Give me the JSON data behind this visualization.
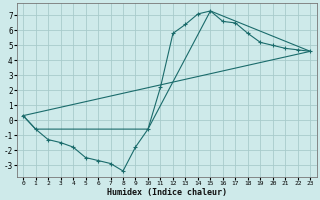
{
  "xlabel": "Humidex (Indice chaleur)",
  "bg_color": "#ceeaea",
  "grid_color": "#a8cccc",
  "line_color": "#1a6b6b",
  "series1_x": [
    0,
    1,
    2,
    3,
    4,
    5,
    6,
    7,
    8,
    9,
    10,
    11,
    12,
    13,
    14,
    15,
    16,
    17,
    18,
    19,
    20,
    21,
    22,
    23
  ],
  "series1_y": [
    0.3,
    -0.6,
    -1.3,
    -1.5,
    -1.8,
    -2.5,
    -2.7,
    -2.9,
    -3.4,
    -1.8,
    -0.6,
    2.2,
    5.8,
    6.4,
    7.1,
    7.3,
    6.6,
    6.5,
    5.8,
    5.2,
    5.0,
    4.8,
    4.7,
    4.6
  ],
  "series2_x": [
    0,
    1,
    10,
    15,
    23
  ],
  "series2_y": [
    0.3,
    -0.6,
    -0.6,
    7.3,
    4.6
  ],
  "series3_x": [
    0,
    23
  ],
  "series3_y": [
    0.3,
    4.6
  ],
  "xlim": [
    -0.5,
    23.5
  ],
  "ylim": [
    -3.8,
    7.8
  ],
  "xticks": [
    0,
    1,
    2,
    3,
    4,
    5,
    6,
    7,
    8,
    9,
    10,
    11,
    12,
    13,
    14,
    15,
    16,
    17,
    18,
    19,
    20,
    21,
    22,
    23
  ],
  "yticks": [
    -3,
    -2,
    -1,
    0,
    1,
    2,
    3,
    4,
    5,
    6,
    7
  ],
  "xlabel_fontsize": 6.0,
  "tick_fontsize_x": 4.5,
  "tick_fontsize_y": 5.5
}
